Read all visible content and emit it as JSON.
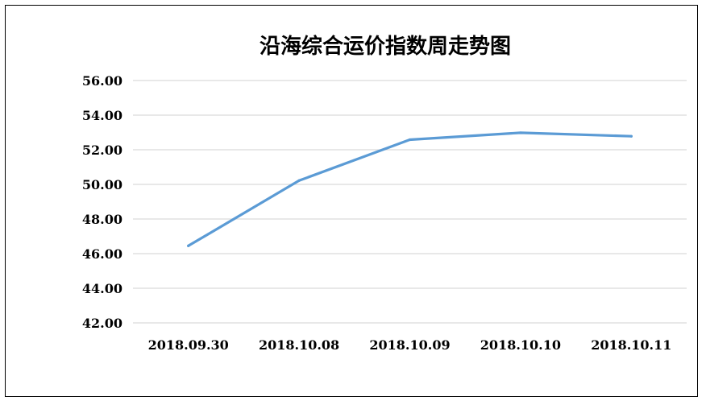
{
  "chart_data": {
    "type": "line",
    "title": "沿海综合运价指数周走势图",
    "categories": [
      "2018.09.30",
      "2018.10.08",
      "2018.10.09",
      "2018.10.10",
      "2018.10.11"
    ],
    "series": [
      {
        "values": [
          46.45,
          50.22,
          52.58,
          52.98,
          52.78
        ],
        "color": "#5b9bd5"
      }
    ],
    "y_ticks": [
      "42.00",
      "44.00",
      "46.00",
      "48.00",
      "50.00",
      "52.00",
      "54.00",
      "56.00"
    ],
    "ylim": [
      42,
      56
    ],
    "grid": true,
    "legend": "none",
    "gridline_color": "#d9d9d9"
  }
}
